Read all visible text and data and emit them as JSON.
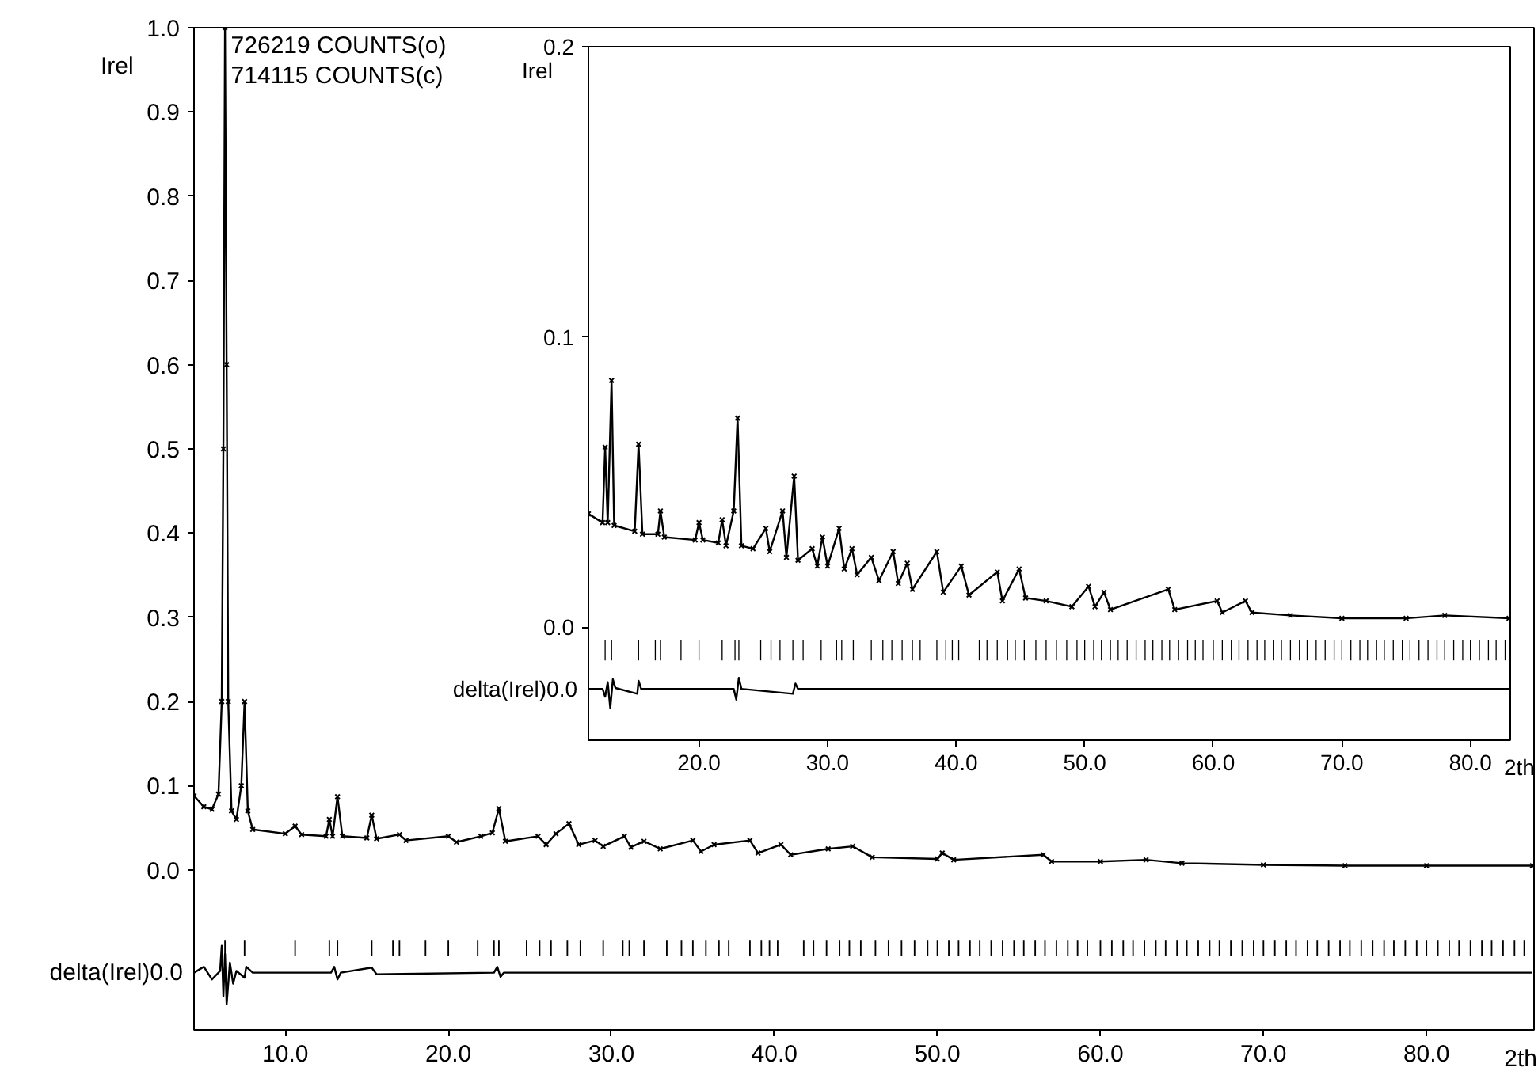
{
  "chart_data": [
    {
      "type": "line",
      "xlabel": "2th",
      "ylabel": "Irel",
      "annotations": [
        "726219 COUNTS(o)",
        "714115 COUNTS(c)",
        {
          "text": "delta(Irel)0.0",
          "x": 4.4,
          "y": -0.122
        }
      ],
      "xlim": [
        4.4,
        86.6
      ],
      "ylim": [
        -0.19,
        1.0
      ],
      "xticks": [
        {
          "value": 10,
          "label": "10.0"
        },
        {
          "value": 20,
          "label": "20.0"
        },
        {
          "value": 30,
          "label": "30.0"
        },
        {
          "value": 40,
          "label": "40.0"
        },
        {
          "value": 50,
          "label": "50.0"
        },
        {
          "value": 60,
          "label": "60.0"
        },
        {
          "value": 70,
          "label": "70.0"
        },
        {
          "value": 80,
          "label": "80.0"
        }
      ],
      "yticks": [
        {
          "value": 0,
          "label": "0.0"
        },
        {
          "value": 0.1,
          "label": "0.1"
        },
        {
          "value": 0.2,
          "label": "0.2"
        },
        {
          "value": 0.3,
          "label": "0.3"
        },
        {
          "value": 0.4,
          "label": "0.4"
        },
        {
          "value": 0.5,
          "label": "0.5"
        },
        {
          "value": 0.6,
          "label": "0.6"
        },
        {
          "value": 0.7,
          "label": "0.7"
        },
        {
          "value": 0.8,
          "label": "0.8"
        },
        {
          "value": 0.9,
          "label": "0.9"
        },
        {
          "value": 1.0,
          "label": "1.0"
        }
      ],
      "series": [
        {
          "color": "#000000",
          "marker": "cross",
          "x": [
            4.4,
            5.0,
            5.5,
            5.9,
            6.1,
            6.2,
            6.3,
            6.4,
            6.5,
            6.7,
            7.0,
            7.3,
            7.5,
            7.7,
            8.0,
            10.0,
            10.6,
            11.0,
            12.5,
            12.7,
            12.9,
            13.2,
            13.5,
            15.0,
            15.3,
            15.6,
            17.0,
            17.4,
            20.0,
            20.5,
            22.0,
            22.7,
            23.1,
            23.5,
            25.5,
            26.0,
            26.6,
            27.4,
            28.0,
            29.0,
            29.5,
            30.8,
            31.2,
            32.0,
            33.0,
            35.0,
            35.5,
            36.3,
            38.5,
            39.0,
            40.4,
            41.0,
            43.3,
            44.8,
            46.0,
            50.0,
            50.3,
            51.0,
            56.5,
            57.0,
            60.0,
            62.8,
            65.0,
            70.0,
            75.0,
            80.0,
            86.5
          ],
          "values": [
            0.088,
            0.075,
            0.072,
            0.09,
            0.2,
            0.5,
            1.0,
            0.6,
            0.2,
            0.07,
            0.06,
            0.1,
            0.2,
            0.07,
            0.048,
            0.043,
            0.052,
            0.042,
            0.04,
            0.06,
            0.04,
            0.087,
            0.04,
            0.038,
            0.065,
            0.037,
            0.042,
            0.035,
            0.04,
            0.033,
            0.04,
            0.044,
            0.073,
            0.034,
            0.04,
            0.03,
            0.043,
            0.055,
            0.03,
            0.035,
            0.028,
            0.04,
            0.027,
            0.034,
            0.025,
            0.035,
            0.022,
            0.03,
            0.035,
            0.02,
            0.03,
            0.018,
            0.025,
            0.028,
            0.015,
            0.013,
            0.02,
            0.012,
            0.018,
            0.01,
            0.01,
            0.012,
            0.008,
            0.006,
            0.005,
            0.005,
            0.005
          ]
        },
        {
          "color": "#000000",
          "x": [
            4.4,
            5.0,
            5.5,
            6.0,
            6.1,
            6.2,
            6.3,
            6.4,
            6.6,
            6.8,
            7.0,
            7.5,
            7.6,
            8.0,
            12.8,
            13.0,
            13.2,
            13.4,
            15.3,
            15.6,
            22.8,
            23.0,
            23.2,
            23.4,
            86.5
          ],
          "values": [
            -0.122,
            -0.115,
            -0.13,
            -0.12,
            -0.09,
            -0.15,
            -0.1,
            -0.16,
            -0.11,
            -0.135,
            -0.12,
            -0.128,
            -0.115,
            -0.122,
            -0.122,
            -0.115,
            -0.13,
            -0.122,
            -0.116,
            -0.124,
            -0.122,
            -0.115,
            -0.127,
            -0.122,
            -0.122
          ]
        },
        {
          "type": "bar",
          "color": "#000000",
          "x": [
            6.3,
            7.5,
            10.6,
            12.7,
            13.2,
            15.3,
            16.6,
            17.0,
            18.6,
            20.0,
            21.8,
            22.8,
            23.1,
            24.8,
            25.6,
            26.3,
            27.3,
            28.1,
            29.5,
            30.7,
            31.1,
            32.0,
            33.4,
            34.3,
            35.0,
            35.8,
            36.6,
            37.2,
            38.5,
            39.2,
            39.7,
            40.2,
            41.8,
            42.4,
            43.2,
            44.0,
            44.6,
            45.3,
            46.2,
            47.0,
            47.8,
            48.6,
            49.4,
            50.0,
            50.7,
            51.3,
            52.0,
            52.6,
            53.3,
            54.0,
            54.7,
            55.3,
            56.0,
            56.6,
            57.3,
            58.0,
            58.6,
            59.2,
            60.0,
            60.7,
            61.4,
            62.0,
            62.7,
            63.4,
            64.0,
            64.7,
            65.3,
            66.0,
            66.7,
            67.3,
            68.0,
            68.7,
            69.4,
            70.0,
            70.7,
            71.4,
            72.0,
            72.7,
            73.3,
            74.0,
            74.7,
            75.3,
            76.0,
            76.7,
            77.4,
            78.0,
            78.7,
            79.4,
            80.0,
            80.7,
            81.4,
            82.0,
            82.7,
            83.4,
            84.0,
            84.7,
            85.4,
            86.0
          ],
          "base": [
            -0.102,
            -0.102,
            -0.102,
            -0.102,
            -0.102,
            -0.102,
            -0.102,
            -0.102,
            -0.102,
            -0.102,
            -0.102,
            -0.102,
            -0.102,
            -0.102,
            -0.102,
            -0.102,
            -0.102,
            -0.102,
            -0.102,
            -0.102,
            -0.102,
            -0.102,
            -0.102,
            -0.102,
            -0.102,
            -0.102,
            -0.102,
            -0.102,
            -0.102,
            -0.102,
            -0.102,
            -0.102,
            -0.102,
            -0.102,
            -0.102,
            -0.102,
            -0.102,
            -0.102,
            -0.102,
            -0.102,
            -0.102,
            -0.102,
            -0.102,
            -0.102,
            -0.102,
            -0.102,
            -0.102,
            -0.102,
            -0.102,
            -0.102,
            -0.102,
            -0.102,
            -0.102,
            -0.102,
            -0.102,
            -0.102,
            -0.102,
            -0.102,
            -0.102,
            -0.102,
            -0.102,
            -0.102,
            -0.102,
            -0.102,
            -0.102,
            -0.102,
            -0.102,
            -0.102,
            -0.102,
            -0.102,
            -0.102,
            -0.102,
            -0.102,
            -0.102,
            -0.102,
            -0.102,
            -0.102,
            -0.102,
            -0.102,
            -0.102,
            -0.102,
            -0.102,
            -0.102,
            -0.102,
            -0.102,
            -0.102,
            -0.102,
            -0.102,
            -0.102,
            -0.102,
            -0.102,
            -0.102,
            -0.102,
            -0.102,
            -0.102,
            -0.102,
            -0.102,
            -0.102
          ],
          "values": [
            0.018,
            0.018,
            0.018,
            0.018,
            0.018,
            0.018,
            0.018,
            0.018,
            0.018,
            0.018,
            0.018,
            0.018,
            0.018,
            0.018,
            0.018,
            0.018,
            0.018,
            0.018,
            0.018,
            0.018,
            0.018,
            0.018,
            0.018,
            0.018,
            0.018,
            0.018,
            0.018,
            0.018,
            0.018,
            0.018,
            0.018,
            0.018,
            0.018,
            0.018,
            0.018,
            0.018,
            0.018,
            0.018,
            0.018,
            0.018,
            0.018,
            0.018,
            0.018,
            0.018,
            0.018,
            0.018,
            0.018,
            0.018,
            0.018,
            0.018,
            0.018,
            0.018,
            0.018,
            0.018,
            0.018,
            0.018,
            0.018,
            0.018,
            0.018,
            0.018,
            0.018,
            0.018,
            0.018,
            0.018,
            0.018,
            0.018,
            0.018,
            0.018,
            0.018,
            0.018,
            0.018,
            0.018,
            0.018,
            0.018,
            0.018,
            0.018,
            0.018,
            0.018,
            0.018,
            0.018,
            0.018,
            0.018,
            0.018,
            0.018,
            0.018,
            0.018,
            0.018,
            0.018,
            0.018,
            0.018,
            0.018,
            0.018,
            0.018,
            0.018,
            0.018,
            0.018,
            0.018,
            0.018
          ]
        }
      ]
    },
    {
      "type": "line",
      "xlabel": "2th",
      "ylabel": "Irel",
      "annotations": [
        {
          "text": "delta(Irel)0.0",
          "x": 11.4,
          "y": -0.0213
        }
      ],
      "xlim": [
        11.4,
        83.1
      ],
      "ylim": [
        -0.039,
        0.2
      ],
      "xticks": [
        {
          "value": 20,
          "label": "20.0"
        },
        {
          "value": 30,
          "label": "30.0"
        },
        {
          "value": 40,
          "label": "40.0"
        },
        {
          "value": 50,
          "label": "50.0"
        },
        {
          "value": 60,
          "label": "60.0"
        },
        {
          "value": 70,
          "label": "70.0"
        },
        {
          "value": 80,
          "label": "80.0"
        }
      ],
      "yticks": [
        {
          "value": 0,
          "label": "0.0"
        },
        {
          "value": 0.1,
          "label": "0.1"
        },
        {
          "value": 0.2,
          "label": "0.2"
        }
      ],
      "series": [
        {
          "color": "#000000",
          "marker": "cross",
          "x": [
            11.4,
            12.5,
            12.7,
            12.9,
            13.2,
            13.4,
            15.0,
            15.3,
            15.6,
            16.8,
            17.0,
            17.3,
            19.7,
            20.0,
            20.3,
            21.5,
            21.8,
            22.1,
            22.7,
            23.0,
            23.3,
            24.2,
            25.2,
            25.5,
            26.5,
            26.8,
            27.4,
            27.7,
            28.8,
            29.2,
            29.6,
            30.0,
            30.9,
            31.3,
            31.9,
            32.3,
            33.4,
            34.0,
            35.1,
            35.5,
            36.2,
            36.6,
            38.5,
            39.0,
            40.4,
            41.0,
            43.2,
            43.6,
            44.9,
            45.4,
            47.0,
            49.0,
            50.3,
            50.8,
            51.5,
            52.0,
            56.5,
            57.0,
            60.3,
            60.7,
            62.5,
            63.0,
            66.0,
            70.0,
            75.0,
            78.0,
            83.0
          ],
          "values": [
            0.039,
            0.036,
            0.062,
            0.036,
            0.085,
            0.035,
            0.033,
            0.063,
            0.032,
            0.032,
            0.04,
            0.031,
            0.03,
            0.036,
            0.03,
            0.029,
            0.037,
            0.028,
            0.04,
            0.072,
            0.028,
            0.027,
            0.034,
            0.026,
            0.04,
            0.024,
            0.052,
            0.023,
            0.027,
            0.021,
            0.031,
            0.021,
            0.034,
            0.02,
            0.027,
            0.018,
            0.024,
            0.016,
            0.026,
            0.015,
            0.022,
            0.013,
            0.026,
            0.012,
            0.021,
            0.011,
            0.019,
            0.009,
            0.02,
            0.01,
            0.009,
            0.007,
            0.014,
            0.007,
            0.012,
            0.006,
            0.013,
            0.006,
            0.009,
            0.005,
            0.009,
            0.005,
            0.004,
            0.003,
            0.003,
            0.004,
            0.003
          ]
        },
        {
          "color": "#000000",
          "x": [
            11.4,
            12.5,
            12.7,
            12.9,
            13.1,
            13.3,
            13.5,
            15.2,
            15.3,
            15.5,
            22.7,
            22.9,
            23.1,
            23.3,
            27.3,
            27.5,
            27.7,
            83.0
          ],
          "values": [
            -0.0213,
            -0.0213,
            -0.024,
            -0.019,
            -0.028,
            -0.018,
            -0.021,
            -0.023,
            -0.0185,
            -0.0213,
            -0.0213,
            -0.025,
            -0.0175,
            -0.0213,
            -0.023,
            -0.0195,
            -0.0213,
            -0.0213
          ]
        },
        {
          "type": "bar",
          "color": "#000000",
          "x": [
            12.7,
            13.2,
            15.3,
            16.6,
            17.0,
            18.6,
            20.0,
            21.8,
            22.8,
            23.1,
            24.8,
            25.6,
            26.3,
            27.3,
            28.1,
            29.5,
            30.7,
            31.1,
            32.0,
            33.4,
            34.3,
            35.0,
            35.8,
            36.6,
            37.2,
            38.5,
            39.2,
            39.7,
            40.2,
            41.8,
            42.4,
            43.2,
            44.0,
            44.6,
            45.3,
            46.2,
            47.0,
            47.8,
            48.6,
            49.4,
            50.0,
            50.7,
            51.3,
            52.0,
            52.6,
            53.3,
            54.0,
            54.7,
            55.3,
            56.0,
            56.6,
            57.3,
            58.0,
            58.6,
            59.2,
            60.0,
            60.7,
            61.4,
            62.0,
            62.7,
            63.4,
            64.0,
            64.7,
            65.3,
            66.0,
            66.7,
            67.3,
            68.0,
            68.7,
            69.4,
            70.0,
            70.7,
            71.4,
            72.0,
            72.7,
            73.3,
            74.0,
            74.7,
            75.3,
            76.0,
            76.7,
            77.4,
            78.0,
            78.7,
            79.4,
            80.0,
            80.7,
            81.4,
            82.0,
            82.7
          ],
          "base": [
            -0.0115,
            -0.0115,
            -0.0115,
            -0.0115,
            -0.0115,
            -0.0115,
            -0.0115,
            -0.0115,
            -0.0115,
            -0.0115,
            -0.0115,
            -0.0115,
            -0.0115,
            -0.0115,
            -0.0115,
            -0.0115,
            -0.0115,
            -0.0115,
            -0.0115,
            -0.0115,
            -0.0115,
            -0.0115,
            -0.0115,
            -0.0115,
            -0.0115,
            -0.0115,
            -0.0115,
            -0.0115,
            -0.0115,
            -0.0115,
            -0.0115,
            -0.0115,
            -0.0115,
            -0.0115,
            -0.0115,
            -0.0115,
            -0.0115,
            -0.0115,
            -0.0115,
            -0.0115,
            -0.0115,
            -0.0115,
            -0.0115,
            -0.0115,
            -0.0115,
            -0.0115,
            -0.0115,
            -0.0115,
            -0.0115,
            -0.0115,
            -0.0115,
            -0.0115,
            -0.0115,
            -0.0115,
            -0.0115,
            -0.0115,
            -0.0115,
            -0.0115,
            -0.0115,
            -0.0115,
            -0.0115,
            -0.0115,
            -0.0115,
            -0.0115,
            -0.0115,
            -0.0115,
            -0.0115,
            -0.0115,
            -0.0115,
            -0.0115,
            -0.0115,
            -0.0115,
            -0.0115,
            -0.0115,
            -0.0115,
            -0.0115,
            -0.0115,
            -0.0115,
            -0.0115,
            -0.0115,
            -0.0115,
            -0.0115,
            -0.0115,
            -0.0115,
            -0.0115,
            -0.0115,
            -0.0115,
            -0.0115,
            -0.0115,
            -0.0115
          ],
          "values": [
            0.007,
            0.007,
            0.007,
            0.007,
            0.007,
            0.007,
            0.007,
            0.007,
            0.007,
            0.007,
            0.007,
            0.007,
            0.007,
            0.007,
            0.007,
            0.007,
            0.007,
            0.007,
            0.007,
            0.007,
            0.007,
            0.007,
            0.007,
            0.007,
            0.007,
            0.007,
            0.007,
            0.007,
            0.007,
            0.007,
            0.007,
            0.007,
            0.007,
            0.007,
            0.007,
            0.007,
            0.007,
            0.007,
            0.007,
            0.007,
            0.007,
            0.007,
            0.007,
            0.007,
            0.007,
            0.007,
            0.007,
            0.007,
            0.007,
            0.007,
            0.007,
            0.007,
            0.007,
            0.007,
            0.007,
            0.007,
            0.007,
            0.007,
            0.007,
            0.007,
            0.007,
            0.007,
            0.007,
            0.007,
            0.007,
            0.007,
            0.007,
            0.007,
            0.007,
            0.007,
            0.007,
            0.007,
            0.007,
            0.007,
            0.007,
            0.007,
            0.007,
            0.007,
            0.007,
            0.007,
            0.007,
            0.007,
            0.007,
            0.007,
            0.007,
            0.007,
            0.007,
            0.007,
            0.007,
            0.007
          ]
        }
      ]
    }
  ]
}
